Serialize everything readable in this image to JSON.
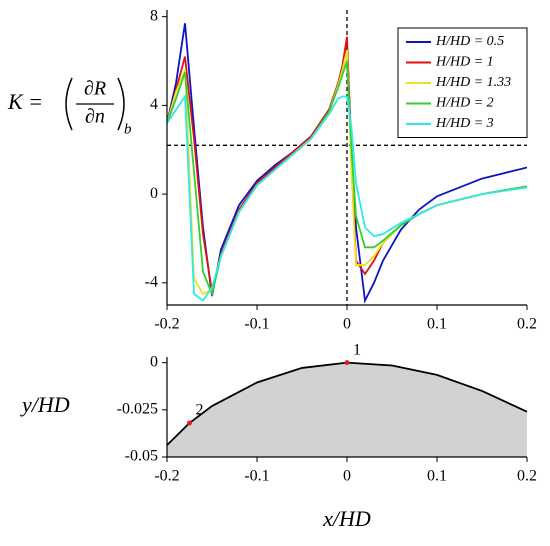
{
  "chart_data": [
    {
      "type": "line",
      "ylabel": {
        "lhs": "K =",
        "num": "∂R",
        "den": "∂n",
        "sub": "b"
      },
      "x": [
        -0.2,
        -0.19,
        -0.18,
        -0.17,
        -0.16,
        -0.15,
        -0.14,
        -0.12,
        -0.1,
        -0.08,
        -0.06,
        -0.04,
        -0.02,
        -0.01,
        -0.005,
        0,
        0.005,
        0.01,
        0.02,
        0.03,
        0.04,
        0.06,
        0.08,
        0.1,
        0.15,
        0.2
      ],
      "series": [
        {
          "name": "H/HD = 0.5",
          "color": "#0a14c8",
          "values": [
            3.2,
            5.0,
            7.7,
            3.0,
            -1.5,
            -4.6,
            -2.5,
            -0.5,
            0.6,
            1.3,
            1.9,
            2.6,
            3.8,
            4.8,
            5.5,
            6.8,
            2.0,
            -1.5,
            -4.8,
            -4.0,
            -3.0,
            -1.6,
            -0.7,
            -0.1,
            0.7,
            1.2
          ]
        },
        {
          "name": "H/HD = 1",
          "color": "#e01010",
          "values": [
            3.2,
            4.7,
            6.2,
            2.5,
            -1.8,
            -4.4,
            -2.7,
            -0.7,
            0.5,
            1.2,
            1.9,
            2.6,
            3.8,
            5.0,
            5.8,
            7.1,
            1.5,
            -3.0,
            -3.6,
            -3.0,
            -2.2,
            -1.4,
            -0.9,
            -0.5,
            0.0,
            0.35
          ]
        },
        {
          "name": "H/HD = 1.33",
          "color": "#f0e020",
          "values": [
            3.2,
            4.6,
            5.6,
            -3.8,
            -4.5,
            -4.3,
            -2.8,
            -0.8,
            0.4,
            1.1,
            1.8,
            2.5,
            3.7,
            4.9,
            5.6,
            6.5,
            1.0,
            -3.2,
            -3.2,
            -2.8,
            -2.2,
            -1.4,
            -0.9,
            -0.5,
            0.0,
            0.35
          ]
        },
        {
          "name": "H/HD = 2",
          "color": "#30d030",
          "values": [
            3.2,
            4.3,
            5.5,
            1.0,
            -3.5,
            -4.5,
            -2.8,
            -0.8,
            0.4,
            1.1,
            1.8,
            2.5,
            3.7,
            4.8,
            5.4,
            6.0,
            2.0,
            -1.0,
            -2.4,
            -2.4,
            -2.1,
            -1.4,
            -0.9,
            -0.5,
            0.0,
            0.35
          ]
        },
        {
          "name": "H/HD = 3",
          "color": "#30e8e8",
          "values": [
            3.2,
            3.8,
            4.4,
            -4.5,
            -4.8,
            -4.2,
            -2.8,
            -0.8,
            0.4,
            1.1,
            1.8,
            2.5,
            3.6,
            4.3,
            4.4,
            4.4,
            3.0,
            0.5,
            -1.5,
            -1.9,
            -1.8,
            -1.3,
            -0.9,
            -0.5,
            0.0,
            0.3
          ]
        }
      ],
      "xlim": [
        -0.2,
        0.2
      ],
      "xticks": [
        -0.2,
        -0.1,
        0,
        0.1,
        0.2
      ],
      "ylim": [
        -5,
        8.3
      ],
      "yticks": [
        -4,
        0,
        4,
        8
      ],
      "hlines": [
        2.2
      ],
      "vlines": [
        0
      ],
      "legend": "upper right"
    },
    {
      "type": "area",
      "xlabel": "x/HD",
      "ylabel": "y/HD",
      "x": [
        -0.2,
        -0.175,
        -0.15,
        -0.1,
        -0.05,
        0,
        0.05,
        0.1,
        0.15,
        0.2
      ],
      "values": [
        -0.0437,
        -0.032,
        -0.023,
        -0.0105,
        -0.0028,
        0,
        -0.0015,
        -0.0065,
        -0.015,
        -0.026
      ],
      "color": "#d2d2d2",
      "line_color": "#000000",
      "points": [
        {
          "label": "1",
          "x": 0,
          "y": 0
        },
        {
          "label": "2",
          "x": -0.175,
          "y": -0.032
        }
      ],
      "point_color": "#e02020",
      "xlim": [
        -0.2,
        0.2
      ],
      "xticks": [
        -0.2,
        -0.1,
        0,
        0.1,
        0.2
      ],
      "ylim": [
        -0.05,
        0.003
      ],
      "yticks": [
        -0.05,
        -0.025,
        0
      ]
    }
  ]
}
